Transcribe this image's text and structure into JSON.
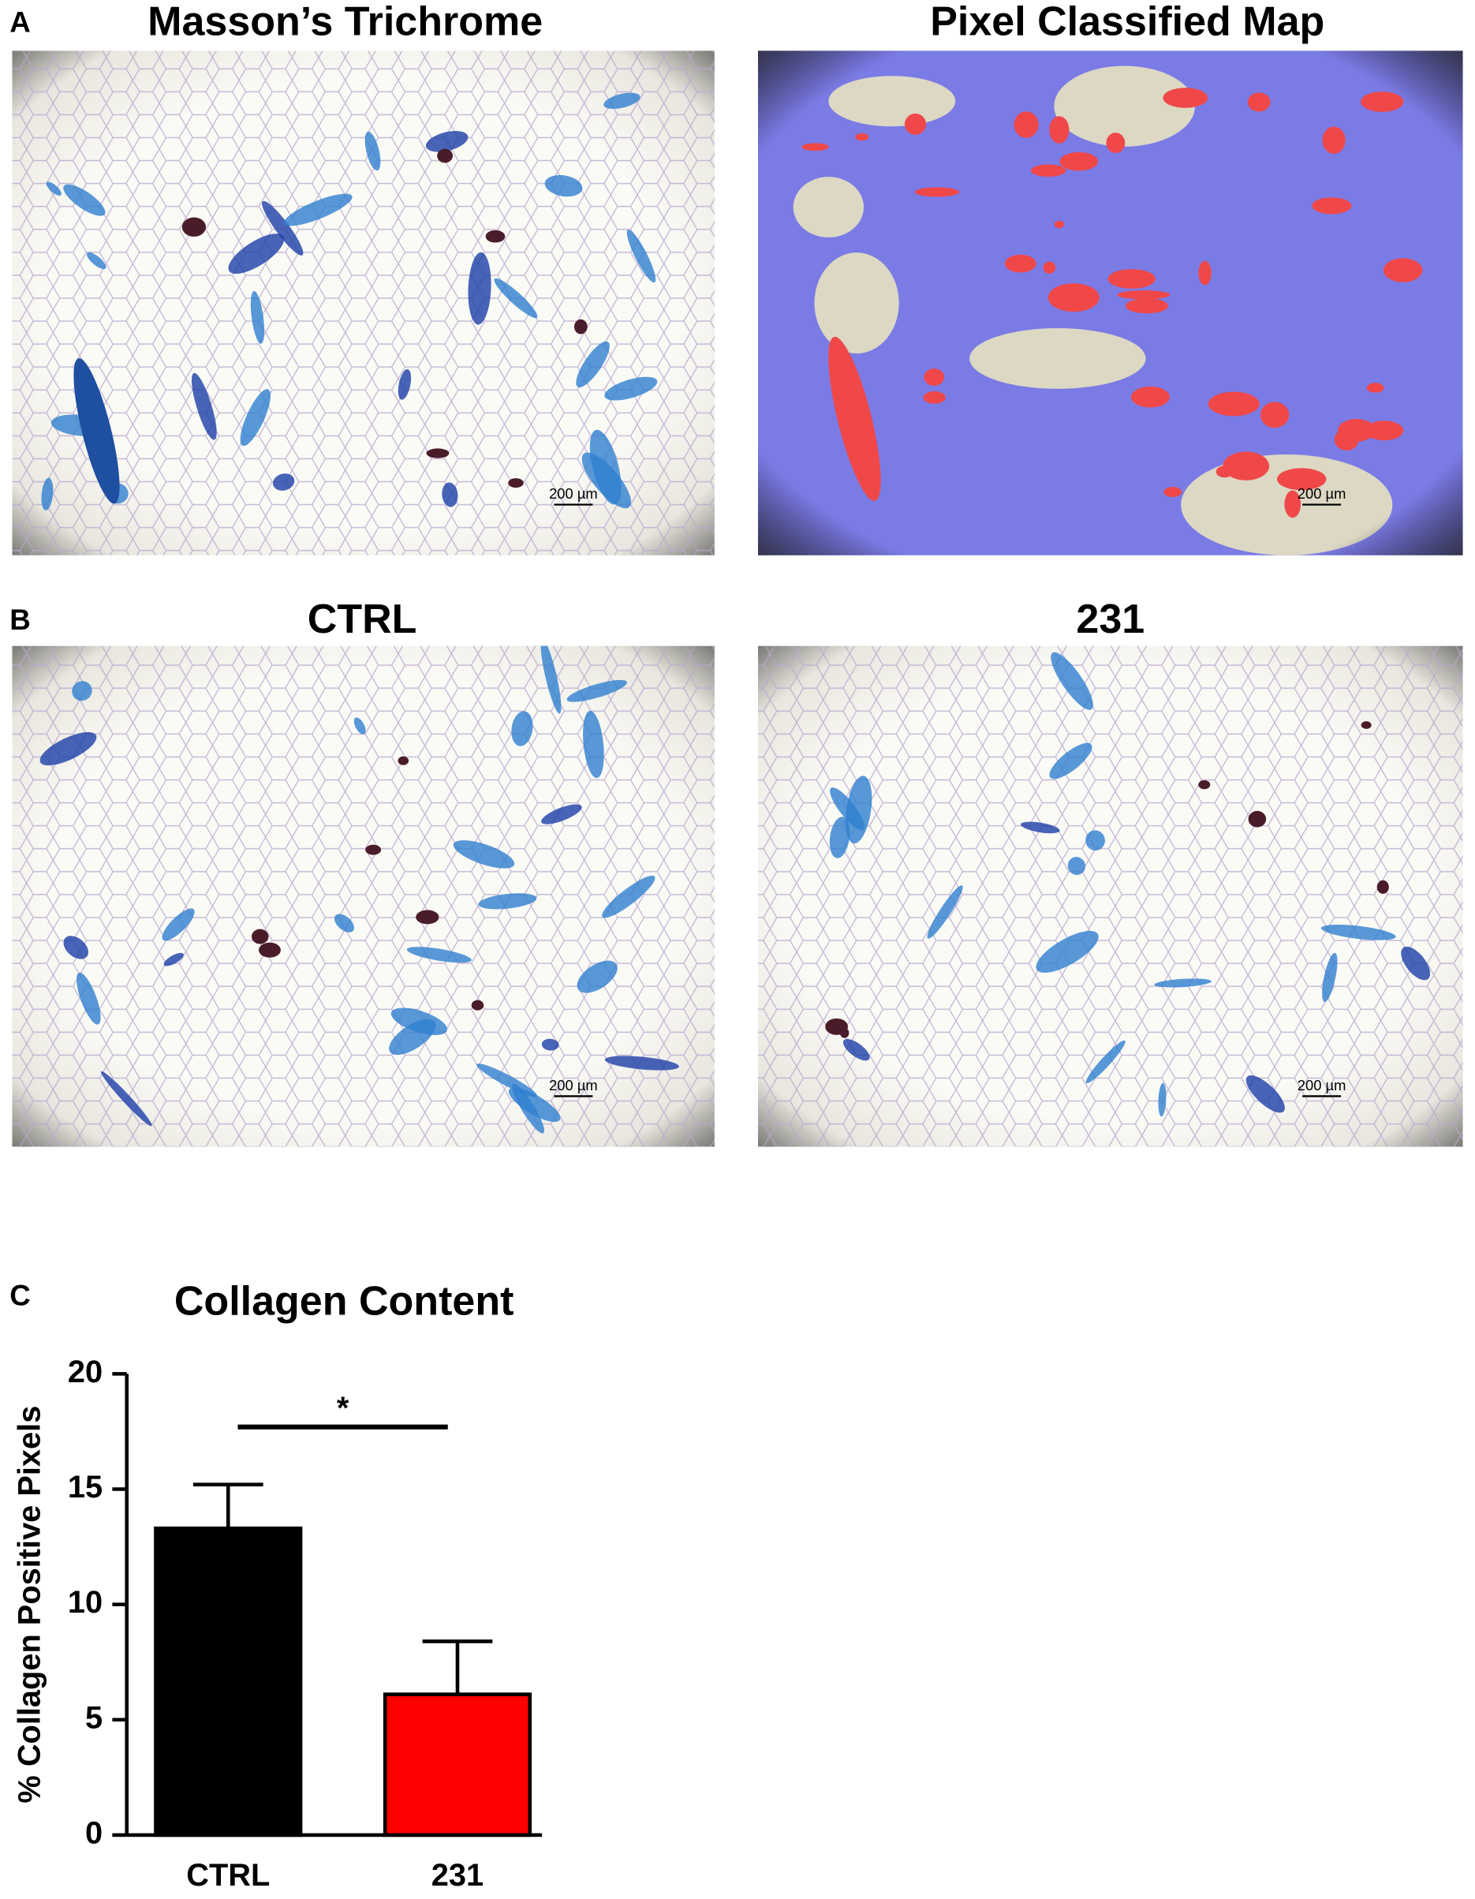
{
  "panels": [
    {
      "label": "A",
      "images": [
        {
          "title": "Masson’s Trichrome",
          "scale_bar": "200 µm"
        },
        {
          "title": "Pixel Classified Map",
          "scale_bar": "200 µm"
        }
      ]
    },
    {
      "label": "B",
      "images": [
        {
          "title": "CTRL",
          "scale_bar": "200 µm"
        },
        {
          "title": "231",
          "scale_bar": "200 µm"
        }
      ]
    }
  ],
  "chart_data": {
    "type": "bar",
    "panel_label": "C",
    "title": "Collagen Content",
    "y_label": "% Collagen Positive Pixels",
    "categories": [
      "CTRL",
      "231"
    ],
    "values": [
      13.3,
      6.1
    ],
    "errors": [
      1.9,
      2.3
    ],
    "colors": [
      "#000000",
      "#ff0000"
    ],
    "ylim": [
      0,
      20
    ],
    "yticks": [
      0,
      5,
      10,
      15,
      20
    ],
    "significance": {
      "label": "*",
      "between": [
        0,
        1
      ]
    }
  }
}
